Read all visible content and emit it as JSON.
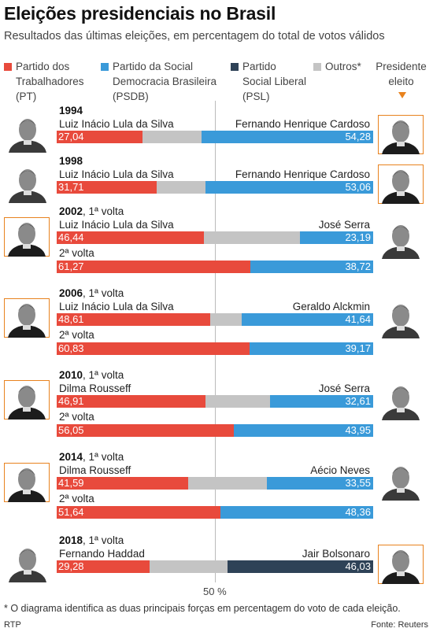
{
  "header": {
    "title": "Eleições presidenciais no Brasil",
    "subtitle": "Resultados das últimas eleições, em percentagem do total de votos válidos"
  },
  "legend": {
    "items": [
      {
        "label": "Partido dos\nTrabalhadores\n(PT)",
        "color": "#e84a3c"
      },
      {
        "label": "Partido da Social\nDemocracia Brasileira\n(PSDB)",
        "color": "#3a9ad9"
      },
      {
        "label": "Partido\nSocial Liberal\n(PSL)",
        "color": "#2e4257"
      },
      {
        "label": "Outros*",
        "color": "#c4c4c4"
      }
    ],
    "elected_label": "Presidente\neleito"
  },
  "chart_data": {
    "type": "bar",
    "stacked": true,
    "max": 100,
    "reference_line": {
      "value": 50,
      "label": "50 %"
    },
    "elections": [
      {
        "year": "1994",
        "round": "",
        "left_candidate": "Luiz Inácio Lula da Silva",
        "right_candidate": "Fernando Henrique Cardoso",
        "left_value": 27.04,
        "right_value": 54.28,
        "left_party": "PT",
        "right_party": "PSDB",
        "winner": "right"
      },
      {
        "year": "1998",
        "round": "",
        "left_candidate": "Luiz Inácio Lula da Silva",
        "right_candidate": "Fernando Henrique Cardoso",
        "left_value": 31.71,
        "right_value": 53.06,
        "left_party": "PT",
        "right_party": "PSDB",
        "winner": "right"
      },
      {
        "year": "2002",
        "round": ", 1ª volta",
        "left_candidate": "Luiz Inácio Lula da Silva",
        "right_candidate": "José Serra",
        "left_value": 46.44,
        "right_value": 23.19,
        "left_party": "PT",
        "right_party": "PSDB",
        "winner": "left",
        "second_round": {
          "label": "2ª volta",
          "left_value": 61.27,
          "right_value": 38.72
        }
      },
      {
        "year": "2006",
        "round": ", 1ª volta",
        "left_candidate": "Luiz Inácio Lula da Silva",
        "right_candidate": "Geraldo Alckmin",
        "left_value": 48.61,
        "right_value": 41.64,
        "left_party": "PT",
        "right_party": "PSDB",
        "winner": "left",
        "second_round": {
          "label": "2ª volta",
          "left_value": 60.83,
          "right_value": 39.17
        }
      },
      {
        "year": "2010",
        "round": ", 1ª volta",
        "left_candidate": "Dilma Rousseff",
        "right_candidate": "José Serra",
        "left_value": 46.91,
        "right_value": 32.61,
        "left_party": "PT",
        "right_party": "PSDB",
        "winner": "left",
        "second_round": {
          "label": "2ª volta",
          "left_value": 56.05,
          "right_value": 43.95
        }
      },
      {
        "year": "2014",
        "round": ", 1ª volta",
        "left_candidate": "Dilma Rousseff",
        "right_candidate": "Aécio Neves",
        "left_value": 41.59,
        "right_value": 33.55,
        "left_party": "PT",
        "right_party": "PSDB",
        "winner": "left",
        "second_round": {
          "label": "2ª volta",
          "left_value": 51.64,
          "right_value": 48.36
        }
      },
      {
        "year": "2018",
        "round": ", 1ª volta",
        "left_candidate": "Fernando Haddad",
        "right_candidate": "Jair Bolsonaro",
        "left_value": 29.28,
        "right_value": 46.03,
        "left_party": "PT",
        "right_party": "PSL",
        "winner": "right"
      }
    ]
  },
  "footer": {
    "footnote": "* O diagrama identifica as duas principais forças em percentagem do voto de cada eleição.",
    "credit_left": "RTP",
    "credit_right": "Fonte: Reuters"
  }
}
